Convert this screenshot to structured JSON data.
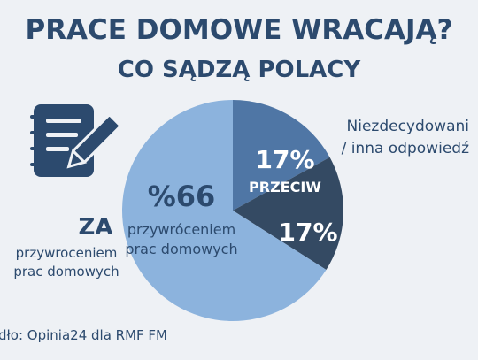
{
  "header": {
    "title": "PRACE DOMOWE WRACAJĄ?",
    "subtitle": "CO SĄDZĄ POLACY"
  },
  "icon": "notepad-pen-icon",
  "chart_data": {
    "type": "pie",
    "slices": [
      {
        "value_label": "%66",
        "label": "ZA",
        "desc": "przywróceniem prac domowych",
        "inner_desc": "przywróceniem prac domowych",
        "value": 66,
        "color": "#8cb3dd"
      },
      {
        "value_label": "17%",
        "label": "PRZECIW",
        "value": 17,
        "color": "#4f76a5"
      },
      {
        "value_label": "17%",
        "label": "Niezdecydowani / inna odpowiedź",
        "value": 17,
        "color": "#344a63"
      }
    ]
  },
  "labels": {
    "za_head": "ZA",
    "za_sub_1": "przywroceniem",
    "za_sub_2": "prac domowych",
    "nd_1": "Niezdecydowani",
    "nd_2": "/ inna odpowiedź",
    "inner_pct": "%66",
    "inner_1": "przywróceniem",
    "inner_2": "prac domowych",
    "przeciw_pct": "17%",
    "przeciw": "PRZECIW",
    "nd_pct": "17%"
  },
  "source": "dło: Opinia24 dla RMF FM"
}
